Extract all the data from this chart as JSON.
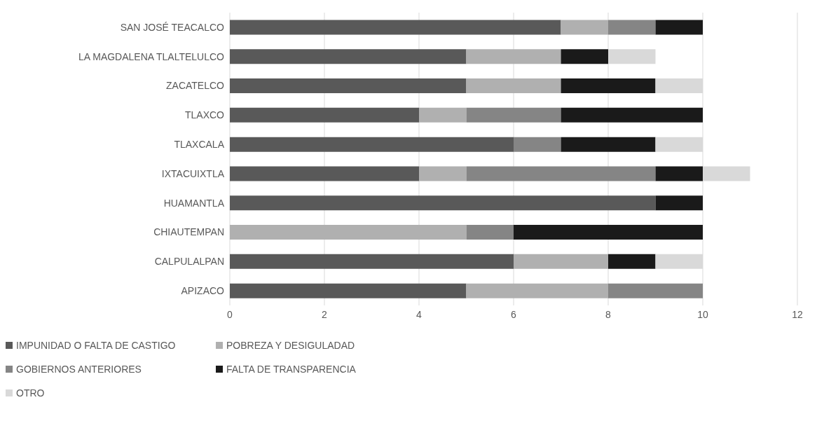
{
  "chart_data": {
    "type": "bar",
    "orientation": "horizontal",
    "stacked": true,
    "categories": [
      "SAN JOSÉ TEACALCO",
      "LA MAGDALENA TLALTELULCO",
      "ZACATELCO",
      "TLAXCO",
      "TLAXCALA",
      "IXTACUIXTLA",
      "HUAMANTLA",
      "CHIAUTEMPAN",
      "CALPULALPAN",
      "APIZACO"
    ],
    "series": [
      {
        "name": "IMPUNIDAD O FALTA DE CASTIGO",
        "color": "#595959",
        "values": [
          7,
          5,
          5,
          4,
          6,
          4,
          9,
          0,
          6,
          5
        ]
      },
      {
        "name": "POBREZA Y DESIGULADAD",
        "color": "#b0b0b0",
        "values": [
          1,
          2,
          2,
          1,
          0,
          1,
          0,
          5,
          2,
          3
        ]
      },
      {
        "name": "GOBIERNOS ANTERIORES",
        "color": "#858585",
        "values": [
          1,
          0,
          0,
          2,
          1,
          4,
          0,
          1,
          0,
          2
        ]
      },
      {
        "name": "FALTA DE TRANSPARENCIA",
        "color": "#1a1a1a",
        "values": [
          1,
          1,
          2,
          3,
          2,
          1,
          1,
          4,
          1,
          0
        ]
      },
      {
        "name": "OTRO",
        "color": "#d9d9d9",
        "values": [
          0,
          1,
          1,
          0,
          1,
          1,
          0,
          0,
          1,
          0
        ]
      }
    ],
    "xlim": [
      0,
      12
    ],
    "xticks": [
      0,
      2,
      4,
      6,
      8,
      10,
      12
    ],
    "grid": "x",
    "legend": "bottom"
  }
}
